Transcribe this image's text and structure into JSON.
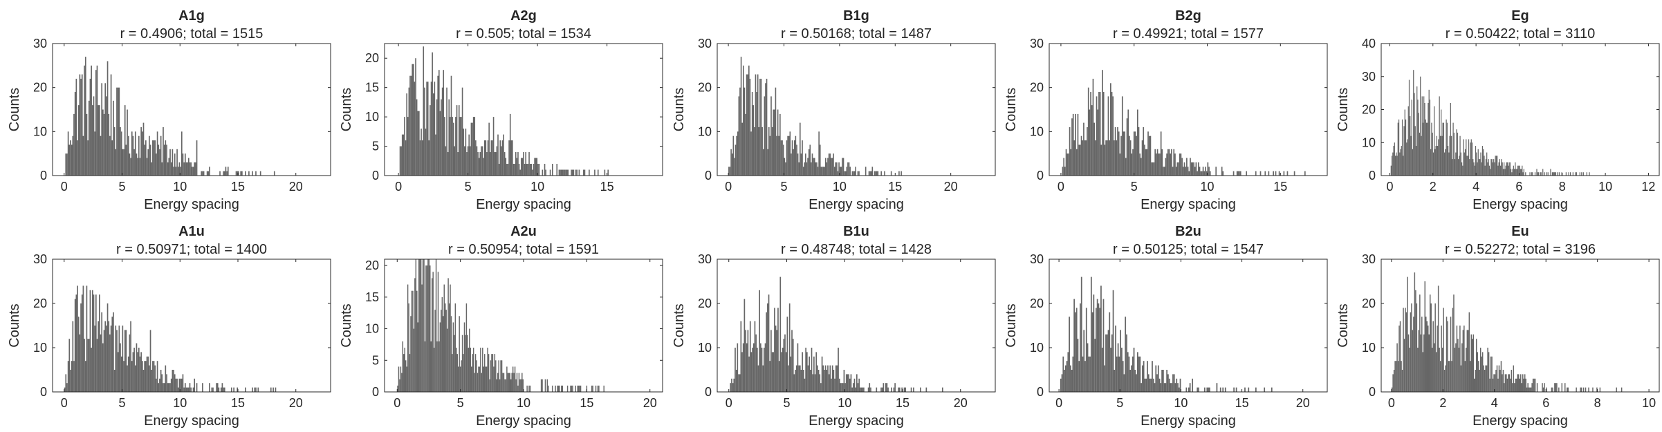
{
  "figure": {
    "background": "#ffffff",
    "bar_color": "#666666",
    "axis_color": "#262626"
  },
  "chart_data": [
    {
      "type": "bar",
      "title": "A1g",
      "subtitle": "r = 0.4906; total = 1515",
      "xlabel": "Energy spacing",
      "ylabel": "Counts",
      "xlim": [
        -1,
        23
      ],
      "ylim": [
        0,
        30
      ],
      "xticks": [
        0,
        5,
        10,
        15,
        20
      ],
      "yticks": [
        0,
        10,
        20,
        30
      ],
      "bin_width": 0.1,
      "x_max_data": 21.6,
      "envelope": [
        [
          0,
          1
        ],
        [
          0.5,
          12
        ],
        [
          1,
          18
        ],
        [
          1.5,
          21
        ],
        [
          2,
          20
        ],
        [
          2.5,
          19
        ],
        [
          3,
          19
        ],
        [
          3.5,
          21
        ],
        [
          4,
          18
        ],
        [
          5,
          12
        ],
        [
          6,
          10
        ],
        [
          7,
          9
        ],
        [
          8,
          7
        ],
        [
          9,
          6
        ],
        [
          10,
          4.5
        ],
        [
          11,
          3
        ],
        [
          12,
          2
        ],
        [
          14,
          1.2
        ],
        [
          17,
          0.6
        ],
        [
          21.6,
          0.2
        ]
      ],
      "peaks": [
        [
          1.5,
          23
        ],
        [
          2.7,
          24
        ],
        [
          3.8,
          26
        ],
        [
          4.8,
          20
        ],
        [
          8.6,
          11
        ],
        [
          10.2,
          10
        ],
        [
          11.4,
          8
        ]
      ]
    },
    {
      "type": "bar",
      "title": "A2g",
      "subtitle": "r = 0.505; total = 1534",
      "xlabel": "Energy spacing",
      "ylabel": "Counts",
      "xlim": [
        -1,
        19
      ],
      "ylim": [
        0,
        22.5
      ],
      "xticks": [
        0,
        5,
        10,
        15
      ],
      "yticks": [
        0,
        5,
        10,
        15,
        20
      ],
      "bin_width": 0.08,
      "x_max_data": 18.6,
      "envelope": [
        [
          0,
          1
        ],
        [
          0.4,
          10
        ],
        [
          1,
          15
        ],
        [
          1.5,
          16
        ],
        [
          2,
          16
        ],
        [
          2.5,
          15
        ],
        [
          3,
          13
        ],
        [
          4,
          11
        ],
        [
          5,
          8
        ],
        [
          6,
          7
        ],
        [
          7,
          6
        ],
        [
          8,
          4.5
        ],
        [
          9,
          3.5
        ],
        [
          10,
          2.5
        ],
        [
          12,
          1.5
        ],
        [
          14,
          0.8
        ],
        [
          16,
          0.4
        ],
        [
          18.6,
          0.2
        ]
      ],
      "peaks": [
        [
          1.2,
          20
        ],
        [
          1.8,
          22
        ],
        [
          2.4,
          21
        ],
        [
          3.2,
          18
        ],
        [
          3.8,
          17
        ],
        [
          4.6,
          15
        ],
        [
          6.8,
          10
        ],
        [
          8,
          10.5
        ]
      ]
    },
    {
      "type": "bar",
      "title": "B1g",
      "subtitle": "r = 0.50168; total = 1487",
      "xlabel": "Energy spacing",
      "ylabel": "Counts",
      "xlim": [
        -1,
        24
      ],
      "ylim": [
        0,
        30
      ],
      "xticks": [
        0,
        5,
        10,
        15,
        20
      ],
      "yticks": [
        0,
        10,
        20,
        30
      ],
      "bin_width": 0.1,
      "x_max_data": 23,
      "envelope": [
        [
          0,
          1
        ],
        [
          0.4,
          9
        ],
        [
          1,
          16
        ],
        [
          1.5,
          19
        ],
        [
          2,
          19
        ],
        [
          2.5,
          18
        ],
        [
          3,
          17
        ],
        [
          4,
          13
        ],
        [
          5,
          9
        ],
        [
          6,
          7
        ],
        [
          7,
          6
        ],
        [
          8,
          5
        ],
        [
          9,
          4
        ],
        [
          10,
          3
        ],
        [
          11,
          2.5
        ],
        [
          12,
          1.5
        ],
        [
          14,
          0.8
        ],
        [
          16,
          0.4
        ],
        [
          23,
          0.2
        ]
      ],
      "peaks": [
        [
          1.2,
          27
        ],
        [
          1.8,
          25
        ],
        [
          2.6,
          23
        ],
        [
          3.4,
          22
        ],
        [
          4.2,
          20
        ],
        [
          6.4,
          12
        ],
        [
          8.2,
          10
        ]
      ]
    },
    {
      "type": "bar",
      "title": "B2g",
      "subtitle": "r = 0.49921; total = 1577",
      "xlabel": "Energy spacing",
      "ylabel": "Counts",
      "xlim": [
        -0.8,
        18.2
      ],
      "ylim": [
        0,
        30
      ],
      "xticks": [
        0,
        5,
        10,
        15
      ],
      "yticks": [
        0,
        10,
        20,
        30
      ],
      "bin_width": 0.08,
      "x_max_data": 17.6,
      "envelope": [
        [
          0,
          1
        ],
        [
          0.5,
          8
        ],
        [
          1,
          12
        ],
        [
          1.5,
          14
        ],
        [
          2,
          16
        ],
        [
          2.5,
          17
        ],
        [
          3,
          16
        ],
        [
          3.5,
          14
        ],
        [
          4,
          12
        ],
        [
          5,
          10
        ],
        [
          6,
          7
        ],
        [
          7,
          5
        ],
        [
          8,
          4
        ],
        [
          9,
          3
        ],
        [
          10,
          2.5
        ],
        [
          11,
          1.8
        ],
        [
          12,
          1.3
        ],
        [
          14,
          0.8
        ],
        [
          17.6,
          0.3
        ]
      ],
      "peaks": [
        [
          2.2,
          22
        ],
        [
          2.8,
          24
        ],
        [
          3.4,
          21
        ],
        [
          4.2,
          18
        ],
        [
          5.2,
          15
        ],
        [
          6.8,
          10
        ]
      ]
    },
    {
      "type": "bar",
      "title": "Eg",
      "subtitle": "r = 0.50422; total = 3110",
      "xlabel": "Energy spacing",
      "ylabel": "Counts",
      "xlim": [
        -0.4,
        12.5
      ],
      "ylim": [
        0,
        40
      ],
      "xticks": [
        0,
        2,
        4,
        6,
        8,
        10,
        12
      ],
      "yticks": [
        0,
        10,
        20,
        30,
        40
      ],
      "bin_width": 0.04,
      "x_max_data": 12.1,
      "envelope": [
        [
          0,
          1
        ],
        [
          0.2,
          8
        ],
        [
          0.5,
          15
        ],
        [
          0.8,
          18
        ],
        [
          1.2,
          20
        ],
        [
          1.6,
          19
        ],
        [
          2,
          17
        ],
        [
          2.5,
          14
        ],
        [
          3,
          11
        ],
        [
          3.5,
          9
        ],
        [
          4,
          7
        ],
        [
          4.5,
          6
        ],
        [
          5,
          4.5
        ],
        [
          5.5,
          3.5
        ],
        [
          6,
          3
        ],
        [
          6.5,
          2
        ],
        [
          7,
          1.5
        ],
        [
          8,
          0.8
        ],
        [
          9,
          0.5
        ],
        [
          12.1,
          0.2
        ]
      ],
      "peaks": [
        [
          0.9,
          29
        ],
        [
          1.1,
          32
        ],
        [
          1.4,
          30
        ],
        [
          1.8,
          26
        ],
        [
          2.3,
          24
        ],
        [
          2.8,
          22
        ]
      ]
    },
    {
      "type": "bar",
      "title": "A1u",
      "subtitle": "r = 0.50971; total = 1400",
      "xlabel": "Energy spacing",
      "ylabel": "Counts",
      "xlim": [
        -1,
        23
      ],
      "ylim": [
        0,
        30
      ],
      "xticks": [
        0,
        5,
        10,
        15,
        20
      ],
      "yticks": [
        0,
        10,
        20,
        30
      ],
      "bin_width": 0.1,
      "x_max_data": 20.6,
      "envelope": [
        [
          0,
          1
        ],
        [
          0.5,
          10
        ],
        [
          1,
          16
        ],
        [
          1.5,
          18
        ],
        [
          2,
          18
        ],
        [
          2.5,
          17
        ],
        [
          3,
          16
        ],
        [
          3.5,
          15
        ],
        [
          4,
          14
        ],
        [
          5,
          11
        ],
        [
          6,
          9
        ],
        [
          7,
          7
        ],
        [
          8,
          6
        ],
        [
          9,
          4
        ],
        [
          10,
          3
        ],
        [
          11,
          2.5
        ],
        [
          12,
          2
        ],
        [
          14,
          1.2
        ],
        [
          17,
          0.6
        ],
        [
          20.6,
          0.2
        ]
      ],
      "peaks": [
        [
          1.2,
          24
        ],
        [
          2.2,
          23
        ],
        [
          3,
          22
        ],
        [
          3.8,
          20
        ],
        [
          5.8,
          16
        ],
        [
          7.4,
          14
        ]
      ]
    },
    {
      "type": "bar",
      "title": "A2u",
      "subtitle": "r = 0.50954; total = 1591",
      "xlabel": "Energy spacing",
      "ylabel": "Counts",
      "xlim": [
        -1,
        21
      ],
      "ylim": [
        0,
        21
      ],
      "xticks": [
        0,
        5,
        10,
        15,
        20
      ],
      "yticks": [
        0,
        5,
        10,
        15,
        20
      ],
      "bin_width": 0.08,
      "x_max_data": 19.8,
      "envelope": [
        [
          0,
          1
        ],
        [
          0.4,
          8
        ],
        [
          1,
          14
        ],
        [
          1.5,
          16
        ],
        [
          2,
          16
        ],
        [
          2.5,
          16
        ],
        [
          3,
          15
        ],
        [
          3.5,
          14
        ],
        [
          4,
          13
        ],
        [
          5,
          10
        ],
        [
          6,
          7
        ],
        [
          7,
          5
        ],
        [
          8,
          4
        ],
        [
          9,
          3
        ],
        [
          10,
          2.5
        ],
        [
          12,
          1.5
        ],
        [
          14,
          1
        ],
        [
          16,
          0.5
        ],
        [
          19.8,
          0.2
        ]
      ],
      "peaks": [
        [
          1.5,
          21
        ],
        [
          2,
          21
        ],
        [
          2.6,
          20
        ],
        [
          3.2,
          19
        ],
        [
          4.2,
          17
        ],
        [
          5.5,
          14
        ]
      ]
    },
    {
      "type": "bar",
      "title": "B1u",
      "subtitle": "r = 0.48748; total = 1428",
      "xlabel": "Energy spacing",
      "ylabel": "Counts",
      "xlim": [
        -1,
        23
      ],
      "ylim": [
        0,
        30
      ],
      "xticks": [
        0,
        5,
        10,
        15,
        20
      ],
      "yticks": [
        0,
        10,
        20,
        30
      ],
      "bin_width": 0.1,
      "x_max_data": 22.4,
      "envelope": [
        [
          0,
          1
        ],
        [
          0.5,
          7
        ],
        [
          1,
          11
        ],
        [
          1.5,
          13
        ],
        [
          2,
          13
        ],
        [
          2.5,
          14
        ],
        [
          3,
          14
        ],
        [
          3.5,
          15
        ],
        [
          4,
          15
        ],
        [
          4.5,
          14
        ],
        [
          5,
          13
        ],
        [
          5.5,
          10
        ],
        [
          6,
          9
        ],
        [
          7,
          7
        ],
        [
          8,
          6
        ],
        [
          9,
          5
        ],
        [
          10,
          4
        ],
        [
          11,
          3
        ],
        [
          12,
          2
        ],
        [
          14,
          1.2
        ],
        [
          17,
          0.6
        ],
        [
          22.4,
          0.2
        ]
      ],
      "peaks": [
        [
          1.4,
          21
        ],
        [
          2.6,
          23
        ],
        [
          3.4,
          22
        ],
        [
          4.4,
          26
        ],
        [
          5.2,
          20
        ],
        [
          9.4,
          10
        ]
      ]
    },
    {
      "type": "bar",
      "title": "B2u",
      "subtitle": "r = 0.50125; total = 1547",
      "xlabel": "Energy spacing",
      "ylabel": "Counts",
      "xlim": [
        -0.8,
        22
      ],
      "ylim": [
        0,
        30
      ],
      "xticks": [
        0,
        5,
        10,
        15,
        20
      ],
      "yticks": [
        0,
        10,
        20,
        30
      ],
      "bin_width": 0.1,
      "x_max_data": 20.6,
      "envelope": [
        [
          0,
          1
        ],
        [
          0.5,
          9
        ],
        [
          1,
          14
        ],
        [
          1.5,
          17
        ],
        [
          2,
          18
        ],
        [
          2.5,
          18
        ],
        [
          3,
          17
        ],
        [
          3.5,
          16
        ],
        [
          4,
          14
        ],
        [
          5,
          11
        ],
        [
          6,
          8
        ],
        [
          7,
          6
        ],
        [
          8,
          4.5
        ],
        [
          9,
          3.5
        ],
        [
          10,
          2.5
        ],
        [
          12,
          1.5
        ],
        [
          14,
          1
        ],
        [
          16,
          0.6
        ],
        [
          20.6,
          0.2
        ]
      ],
      "peaks": [
        [
          1.8,
          26
        ],
        [
          2.6,
          26
        ],
        [
          3.4,
          24
        ],
        [
          4.4,
          23
        ],
        [
          5.4,
          17
        ]
      ]
    },
    {
      "type": "bar",
      "title": "Eu",
      "subtitle": "r = 0.52272; total = 3196",
      "xlabel": "Energy spacing",
      "ylabel": "Counts",
      "xlim": [
        -0.4,
        10.4
      ],
      "ylim": [
        0,
        30
      ],
      "xticks": [
        0,
        2,
        4,
        6,
        8,
        10
      ],
      "yticks": [
        0,
        10,
        20,
        30
      ],
      "bin_width": 0.04,
      "x_max_data": 10.2,
      "envelope": [
        [
          0,
          1
        ],
        [
          0.2,
          10
        ],
        [
          0.5,
          15
        ],
        [
          0.8,
          17
        ],
        [
          1.2,
          18
        ],
        [
          1.6,
          17
        ],
        [
          2,
          15
        ],
        [
          2.5,
          13
        ],
        [
          3,
          10
        ],
        [
          3.5,
          8
        ],
        [
          4,
          6
        ],
        [
          4.5,
          4.5
        ],
        [
          5,
          3.5
        ],
        [
          5.5,
          2.5
        ],
        [
          6,
          2
        ],
        [
          7,
          1
        ],
        [
          8,
          0.6
        ],
        [
          10.2,
          0.2
        ]
      ],
      "peaks": [
        [
          0.6,
          26
        ],
        [
          0.9,
          27
        ],
        [
          1.3,
          25
        ],
        [
          1.8,
          24
        ],
        [
          2.4,
          22
        ],
        [
          3,
          18
        ]
      ]
    }
  ]
}
